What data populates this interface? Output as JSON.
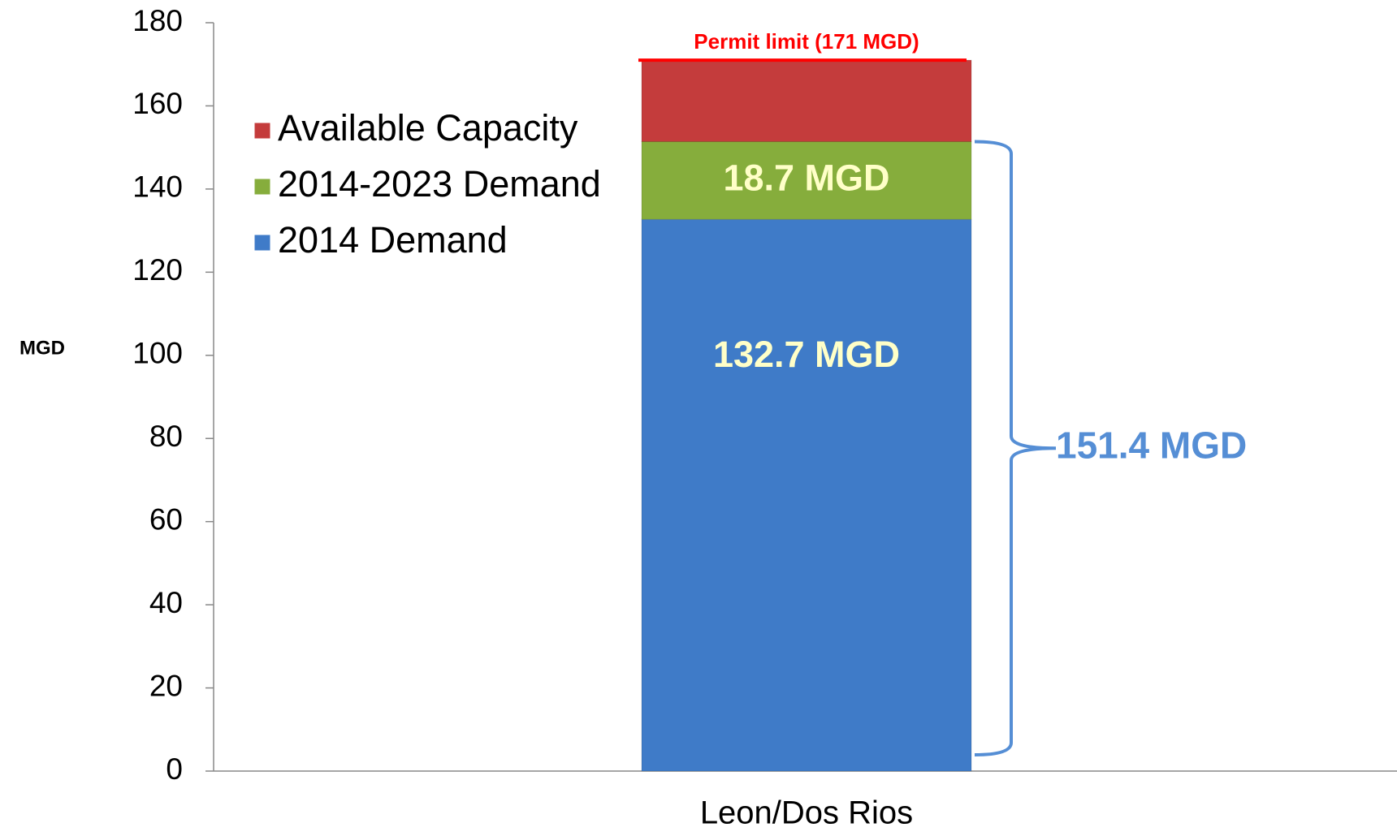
{
  "chart_data": {
    "type": "stacked_bar",
    "y_label": "MGD",
    "categories": [
      "Leon/Dos Rios"
    ],
    "series": [
      {
        "name": "2014 Demand",
        "color": "#3f7bc8",
        "values": [
          132.7
        ],
        "value_labels": [
          "132.7 MGD"
        ]
      },
      {
        "name": "2014-2023 Demand",
        "color": "#86ad3c",
        "values": [
          18.7
        ],
        "value_labels": [
          "18.7 MGD"
        ]
      },
      {
        "name": "Available Capacity",
        "color": "#c43c3c",
        "values": [
          19.6
        ]
      }
    ],
    "ylim": [
      0,
      180
    ],
    "yticks": [
      0,
      20,
      40,
      60,
      80,
      100,
      120,
      140,
      160,
      180
    ],
    "annotations": [
      {
        "text": "Permit limit (171 MGD)",
        "value": 171,
        "color": "#ff0000"
      },
      {
        "text": "151.4 MGD",
        "value": 151.4,
        "color": "#558ed5"
      }
    ]
  }
}
